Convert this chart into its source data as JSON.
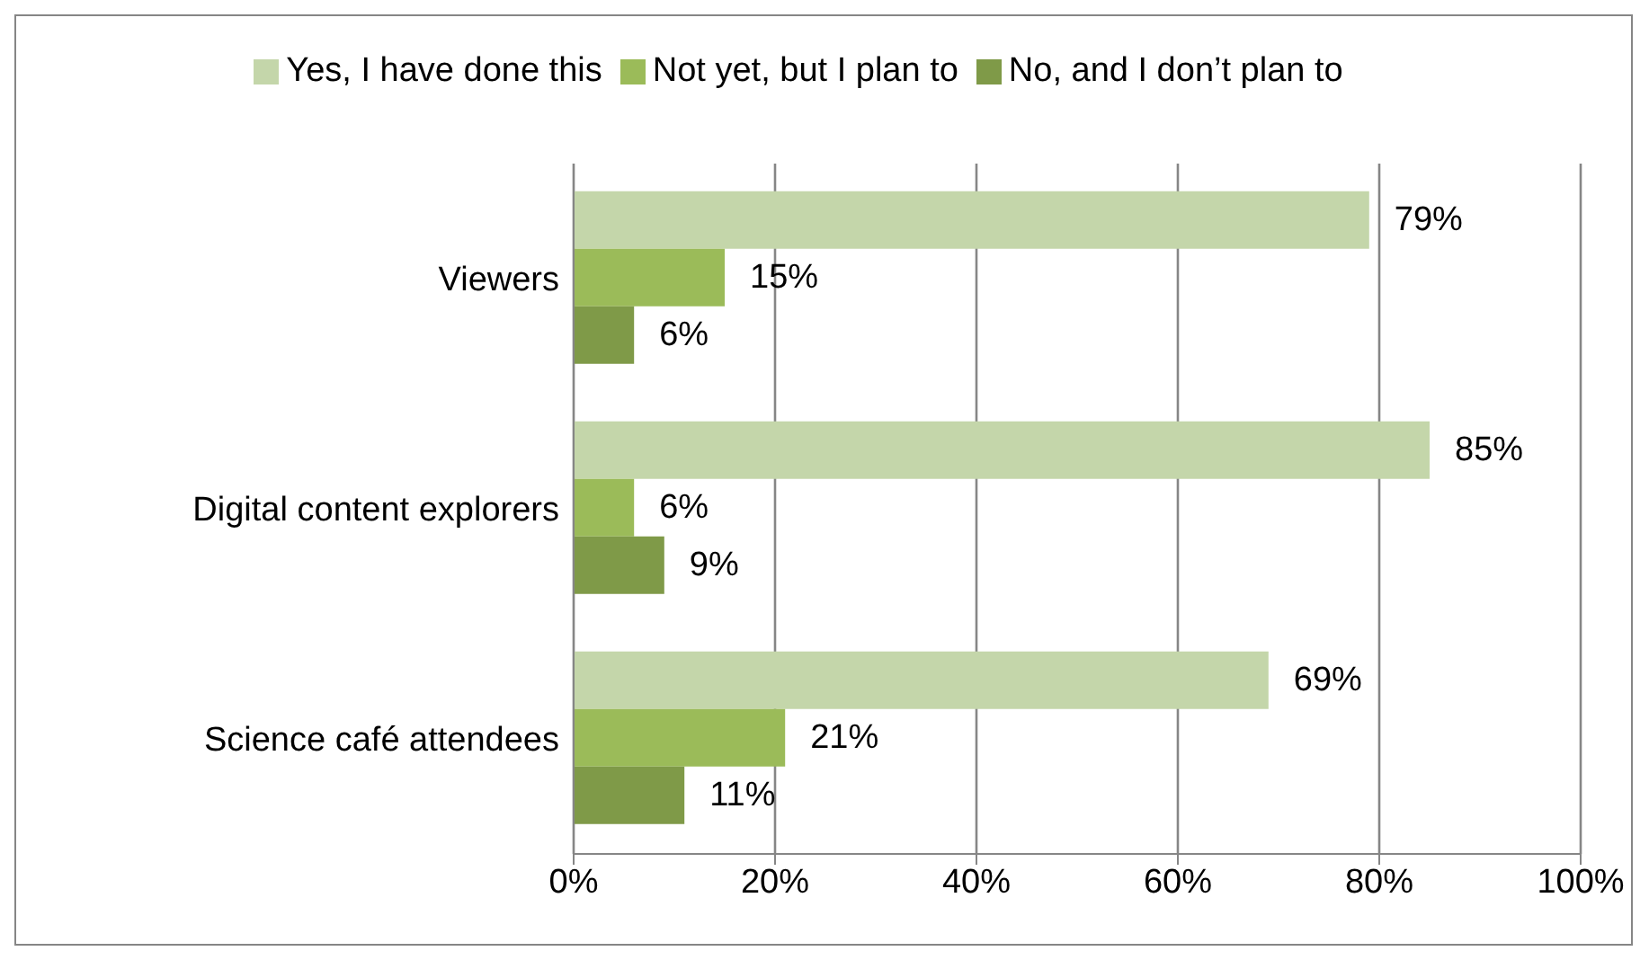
{
  "chart_data": {
    "type": "bar",
    "orientation": "horizontal",
    "categories": [
      "Viewers",
      "Digital content explorers",
      "Science café attendees"
    ],
    "series": [
      {
        "name": "Yes, I have done this",
        "color": "#c4d6aa",
        "values": [
          79,
          85,
          69
        ],
        "value_labels": [
          "79%",
          "85%",
          "69%"
        ]
      },
      {
        "name": "Not yet, but I plan to",
        "color": "#9bbb59",
        "values": [
          15,
          6,
          21
        ],
        "value_labels": [
          "15%",
          "6%",
          "21%"
        ]
      },
      {
        "name": "No, and I don’t plan to",
        "color": "#7f9a48",
        "values": [
          6,
          9,
          11
        ],
        "value_labels": [
          "6%",
          "9%",
          "11%"
        ]
      }
    ],
    "xlim": [
      0,
      100
    ],
    "xticks": [
      {
        "value": 0,
        "label": "0%"
      },
      {
        "value": 20,
        "label": "20%"
      },
      {
        "value": 40,
        "label": "40%"
      },
      {
        "value": 60,
        "label": "60%"
      },
      {
        "value": 80,
        "label": "80%"
      },
      {
        "value": 100,
        "label": "100%"
      }
    ],
    "grid": "x",
    "legend": "top"
  }
}
